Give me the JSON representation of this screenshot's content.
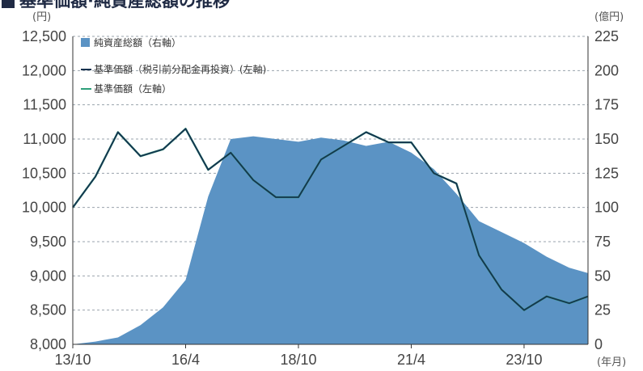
{
  "chart_data": {
    "type": "area",
    "title": "基準価額·純資産総額の推移",
    "left_unit": "(円)",
    "right_unit": "(億円)",
    "x_unit": "(年月)",
    "x_ticks": [
      "13/10",
      "16/4",
      "18/10",
      "21/4",
      "23/10"
    ],
    "y_left": {
      "min": 8000,
      "max": 12500,
      "ticks": [
        "8,000",
        "8,500",
        "9,000",
        "9,500",
        "10,000",
        "10,500",
        "11,000",
        "11,500",
        "12,000",
        "12,500"
      ]
    },
    "y_right": {
      "min": 0,
      "max": 225,
      "ticks": [
        "0",
        "25",
        "50",
        "75",
        "100",
        "125",
        "150",
        "175",
        "200",
        "225"
      ]
    },
    "grid": "dashed-horizontal",
    "legend_position": "top-left",
    "colors": {
      "area": "#5b93c4",
      "nav_reinvested": "#16324f",
      "nav": "#2e9f7a",
      "title_square": "#1f2a44"
    },
    "x": [
      "2013-10",
      "2014-04",
      "2014-10",
      "2015-04",
      "2015-10",
      "2016-04",
      "2016-10",
      "2017-04",
      "2017-10",
      "2018-04",
      "2018-10",
      "2019-04",
      "2019-10",
      "2020-04",
      "2020-10",
      "2021-04",
      "2021-10",
      "2022-04",
      "2022-10",
      "2023-04",
      "2023-10",
      "2024-04",
      "2024-10",
      "2025-03"
    ],
    "series": [
      {
        "name": "純資産総額（右軸）",
        "axis": "right",
        "kind": "area",
        "values": [
          0,
          2,
          5,
          14,
          27,
          47,
          108,
          150,
          152,
          150,
          148,
          151,
          149,
          145,
          148,
          140,
          128,
          110,
          90,
          82,
          74,
          64,
          56,
          52
        ]
      },
      {
        "name": "基準価額（税引前分配金再投資）(左軸)",
        "axis": "left",
        "kind": "line",
        "values": [
          10000,
          10450,
          11100,
          10750,
          10850,
          11150,
          10550,
          10800,
          10400,
          10150,
          10150,
          10700,
          10900,
          11100,
          10950,
          10950,
          10500,
          10350,
          9300,
          8800,
          8500,
          8700,
          8600,
          8700
        ]
      },
      {
        "name": "基準価額（左軸）",
        "axis": "left",
        "kind": "line",
        "values": [
          10000,
          10450,
          11100,
          10750,
          10850,
          11150,
          10550,
          10800,
          10400,
          10150,
          10150,
          10700,
          10900,
          11100,
          10950,
          10950,
          10500,
          10350,
          9300,
          8800,
          8500,
          8700,
          8600,
          8700
        ]
      }
    ]
  }
}
